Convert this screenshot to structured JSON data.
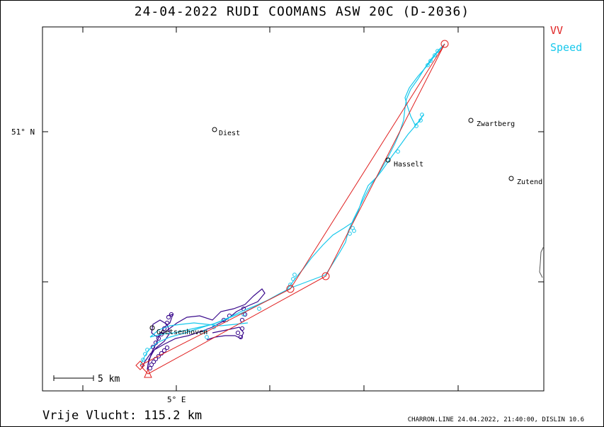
{
  "title": "24-04-2022   RUDI COOMANS   ASW 20C (D-2036)",
  "legend": {
    "vv": "VV",
    "speed": "Speed"
  },
  "axes": {
    "lat_label": "51° N",
    "lon_label": "5° E"
  },
  "scale_bar": {
    "label": "5 km"
  },
  "places": [
    {
      "name": "Diest"
    },
    {
      "name": "Zwartberg"
    },
    {
      "name": "Hasselt"
    },
    {
      "name": "Zutend"
    },
    {
      "name": "Goetsenhoven"
    }
  ],
  "footer": {
    "distance": "Vrije Vlucht:  115.2 km",
    "credit": "CHARRON.LINE 24.04.2022, 21:40:00, DISLIN 10.6"
  },
  "colors": {
    "task": "#e02020",
    "speed_track": "#18c8ec",
    "climb_track": "#3a0a8c",
    "frame": "#000000"
  }
}
